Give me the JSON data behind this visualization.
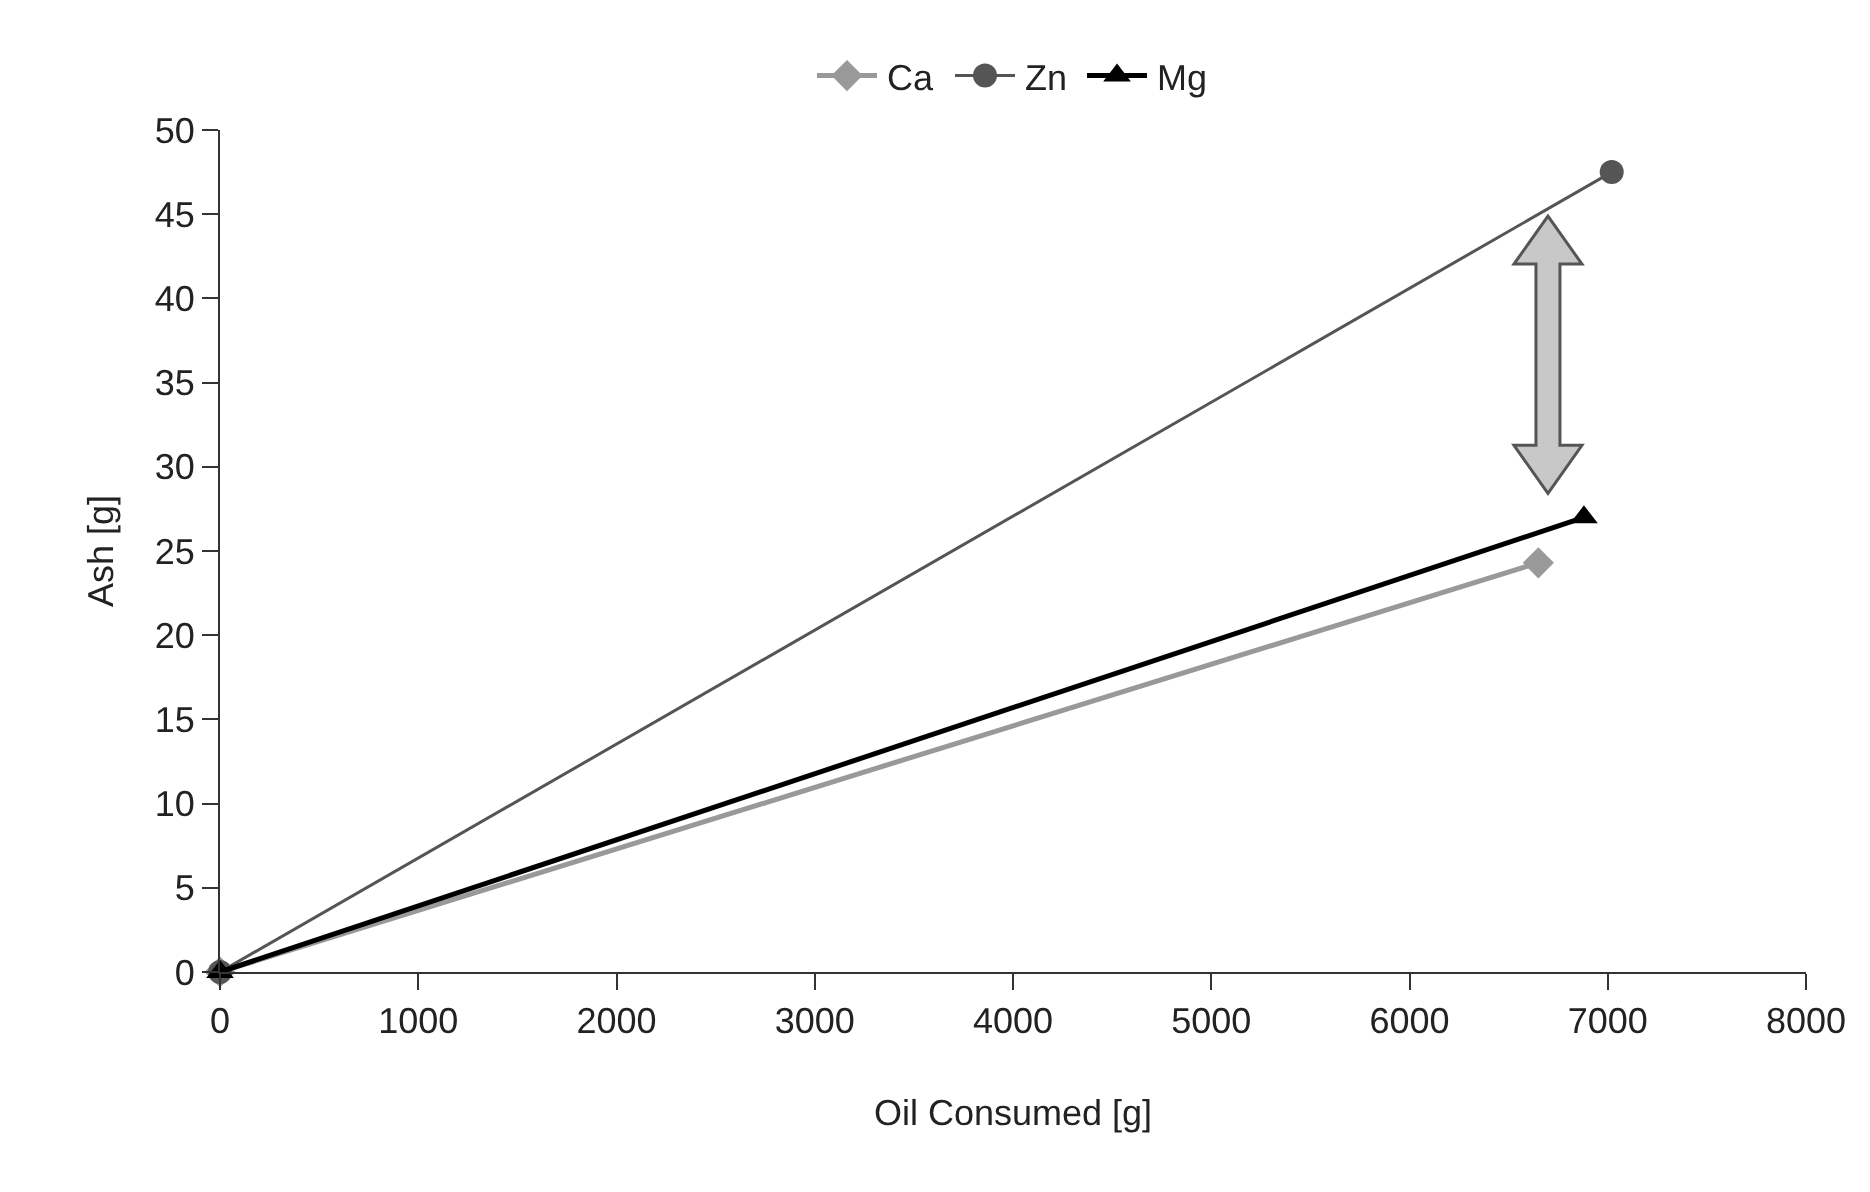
{
  "chart_data": {
    "type": "line",
    "xlabel": "Oil Consumed [g]",
    "ylabel": "Ash [g]",
    "x": [
      0,
      6650
    ],
    "series": [
      {
        "name": "Ca",
        "color": "#999999",
        "marker": "diamond",
        "values": [
          0,
          24.3
        ]
      },
      {
        "name": "Zn",
        "color": "#555555",
        "marker": "circle",
        "x": [
          0,
          7020
        ],
        "values": [
          0,
          47.5
        ]
      },
      {
        "name": "Mg",
        "color": "#000000",
        "marker": "triangle",
        "x": [
          0,
          6880
        ],
        "values": [
          0,
          27
        ]
      }
    ],
    "xlim": [
      0,
      8000
    ],
    "xticks": [
      0,
      1000,
      2000,
      3000,
      4000,
      5000,
      6000,
      7000,
      8000
    ],
    "ylim": [
      0,
      50
    ],
    "yticks": [
      0,
      5,
      10,
      15,
      20,
      25,
      30,
      35,
      40,
      45,
      50
    ],
    "grid": false,
    "legend": "top",
    "line_style": "solid"
  }
}
